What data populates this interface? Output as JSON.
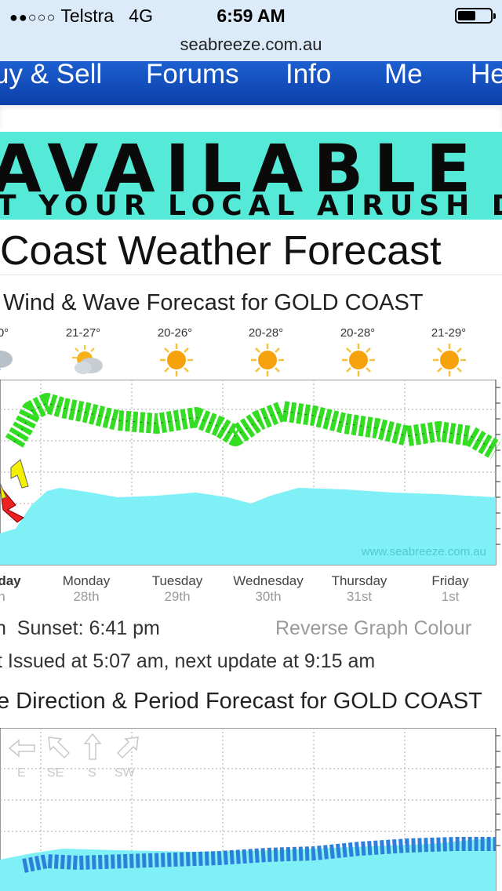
{
  "status_bar": {
    "carrier": "Telstra",
    "network": "4G",
    "time": "6:59 AM",
    "battery_level": 0.55
  },
  "browser": {
    "url": "seabreeze.com.au"
  },
  "nav": {
    "items": [
      "uy & Sell",
      "Forums",
      "Info",
      "Me",
      "He"
    ]
  },
  "banner": {
    "line1": "AVAILABLE NOW",
    "line2": "T YOUR LOCAL AIRUSH DEALE"
  },
  "page": {
    "title": "Coast Weather Forecast"
  },
  "wind_chart": {
    "title": "Wind & Wave Forecast for GOLD COAST",
    "temps": [
      "0°",
      "21-27°",
      "20-26°",
      "20-28°",
      "20-28°",
      "21-29°"
    ],
    "weather_icons": [
      "showers-icon",
      "partly-cloudy-icon",
      "sun-icon",
      "sun-icon",
      "sun-icon",
      "sun-icon"
    ],
    "days": [
      "day",
      "Monday",
      "Tuesday",
      "Wednesday",
      "Thursday",
      "Friday"
    ],
    "dates": [
      "h",
      "28th",
      "29th",
      "30th",
      "31st",
      "1st"
    ],
    "watermark": "www.seabreeze.com.au"
  },
  "info": {
    "sunset": "n  Sunset: 6:41 pm",
    "reverse": "Reverse Graph Colour",
    "issued": "t Issued at 5:07 am, next update at 9:15 am"
  },
  "swell_chart": {
    "title": "e Direction & Period Forecast for GOLD COAST",
    "directions": [
      "E",
      "SE",
      "S",
      "SW"
    ]
  },
  "colors": {
    "nav_blue": "#0b3fa8",
    "banner": "#55ead8",
    "wave_fill": "#7ff0f5",
    "wind_arrows": "#33dd22",
    "swell_arrows": "#2e7fdc",
    "strong_wind": "#ee2222",
    "medium_wind": "#f5f000"
  }
}
